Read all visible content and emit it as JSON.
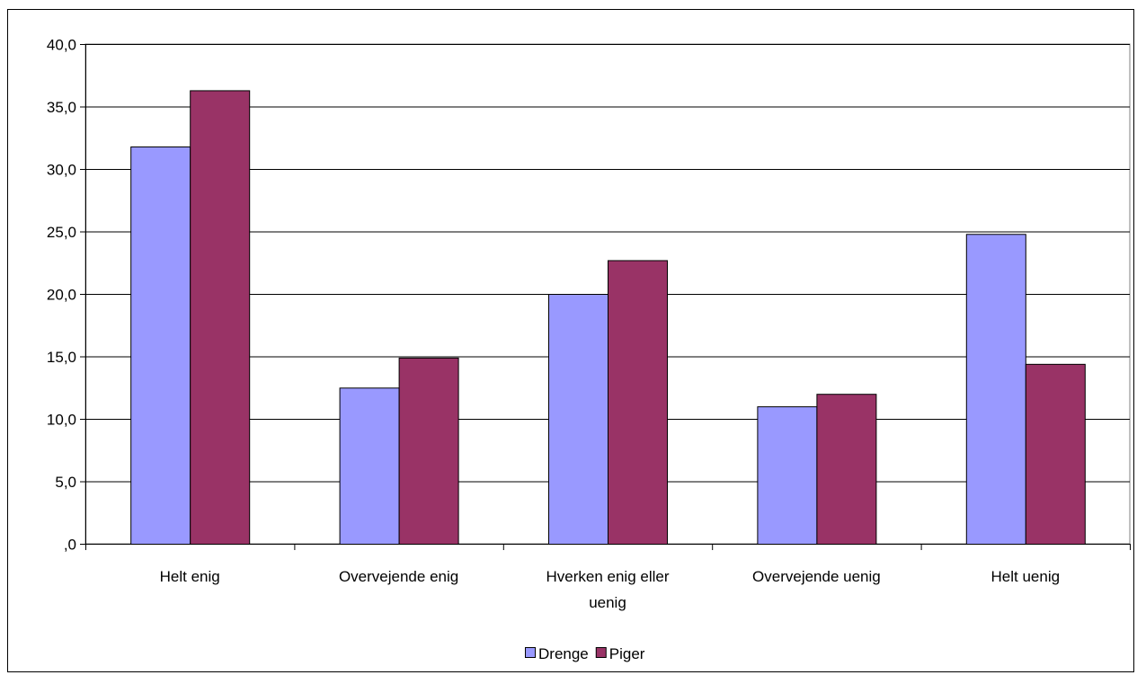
{
  "chart_data": {
    "type": "bar",
    "categories": [
      [
        "Helt enig"
      ],
      [
        "Overvejende enig"
      ],
      [
        "Hverken enig eller",
        "uenig"
      ],
      [
        "Overvejende uenig"
      ],
      [
        "Helt uenig"
      ]
    ],
    "series": [
      {
        "name": "Drenge",
        "color": "#9999ff",
        "values": [
          31.8,
          12.5,
          20.0,
          11.0,
          24.8
        ]
      },
      {
        "name": "Piger",
        "color": "#993366",
        "values": [
          36.3,
          14.9,
          22.7,
          12.0,
          14.4
        ]
      }
    ],
    "y_ticks": [
      ",0",
      "5,0",
      "10,0",
      "15,0",
      "20,0",
      "25,0",
      "30,0",
      "35,0",
      "40,0"
    ],
    "ylim": [
      0,
      40
    ],
    "y_step": 5,
    "grid": true,
    "legend_position": "bottom"
  }
}
